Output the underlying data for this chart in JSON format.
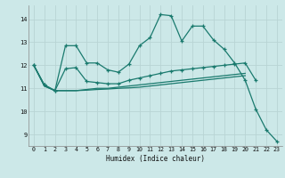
{
  "x_values": [
    0,
    1,
    2,
    3,
    4,
    5,
    6,
    7,
    8,
    9,
    10,
    11,
    12,
    13,
    14,
    15,
    16,
    17,
    18,
    19,
    20,
    21,
    22,
    23
  ],
  "line1_x": [
    0,
    1,
    2,
    3,
    4,
    5,
    6,
    7,
    8,
    9,
    10,
    11,
    12,
    13,
    14,
    15,
    16,
    17,
    18,
    19,
    20,
    21,
    22,
    23
  ],
  "line1_y": [
    12.0,
    11.15,
    10.9,
    12.85,
    12.85,
    12.1,
    12.1,
    11.8,
    11.7,
    12.05,
    12.85,
    13.2,
    14.2,
    14.15,
    13.05,
    13.7,
    13.7,
    13.1,
    12.7,
    12.1,
    11.35,
    10.1,
    9.2,
    8.7
  ],
  "line2_x": [
    0,
    1,
    2,
    3,
    4,
    5,
    6,
    7,
    8,
    9,
    10,
    11,
    12,
    13,
    14,
    15,
    16,
    17,
    18,
    19,
    20,
    21
  ],
  "line2_y": [
    12.0,
    11.15,
    10.9,
    11.85,
    11.9,
    11.3,
    11.25,
    11.2,
    11.2,
    11.35,
    11.45,
    11.55,
    11.65,
    11.75,
    11.8,
    11.85,
    11.9,
    11.95,
    12.0,
    12.05,
    12.1,
    11.35
  ],
  "line3_x": [
    0,
    1,
    2,
    3,
    4,
    5,
    6,
    7,
    8,
    9,
    10,
    11,
    12,
    13,
    14,
    15,
    16,
    17,
    18,
    19,
    20
  ],
  "line3_y": [
    12.0,
    11.1,
    10.9,
    10.9,
    10.9,
    10.95,
    11.0,
    11.0,
    11.05,
    11.1,
    11.15,
    11.2,
    11.25,
    11.3,
    11.35,
    11.4,
    11.45,
    11.5,
    11.55,
    11.6,
    11.65
  ],
  "line4_x": [
    0,
    1,
    2,
    3,
    4,
    5,
    6,
    7,
    8,
    9,
    10,
    11,
    12,
    13,
    14,
    15,
    16,
    17,
    18,
    19,
    20
  ],
  "line4_y": [
    12.0,
    11.1,
    10.9,
    10.9,
    10.9,
    10.92,
    10.95,
    10.97,
    11.0,
    11.02,
    11.05,
    11.1,
    11.15,
    11.2,
    11.25,
    11.3,
    11.35,
    11.4,
    11.45,
    11.5,
    11.55
  ],
  "bg_color": "#cce8e8",
  "grid_color": "#b8d4d4",
  "line_color": "#1a7a6e",
  "xlabel": "Humidex (Indice chaleur)",
  "ylim": [
    8.5,
    14.6
  ],
  "xlim": [
    -0.5,
    23.5
  ],
  "yticks": [
    9,
    10,
    11,
    12,
    13,
    14
  ],
  "xticks": [
    0,
    1,
    2,
    3,
    4,
    5,
    6,
    7,
    8,
    9,
    10,
    11,
    12,
    13,
    14,
    15,
    16,
    17,
    18,
    19,
    20,
    21,
    22,
    23
  ]
}
